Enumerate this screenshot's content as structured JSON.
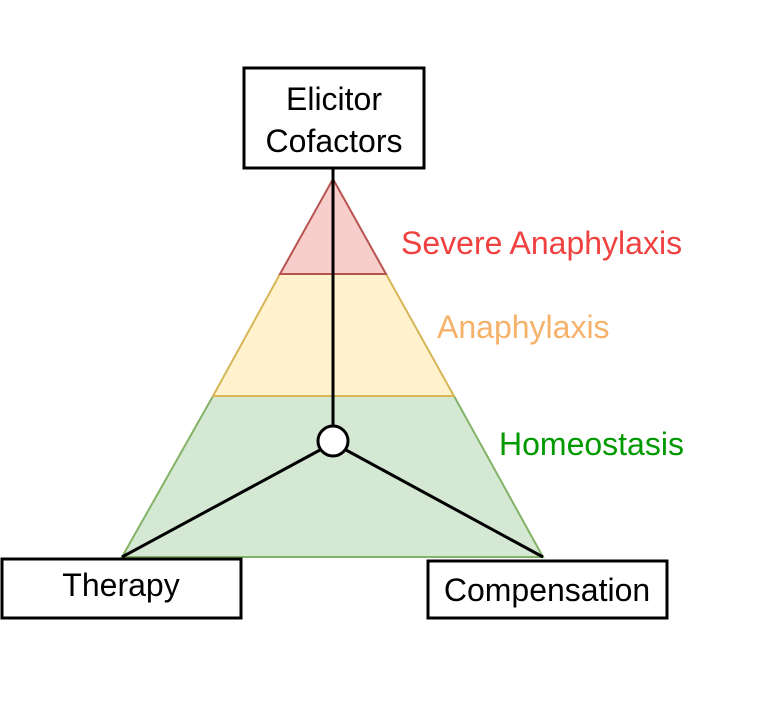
{
  "diagram": {
    "top_box": {
      "line1": "Elicitor",
      "line2": "Cofactors"
    },
    "left_box": {
      "label": "Therapy"
    },
    "right_box": {
      "label": "Compensation"
    },
    "zones": {
      "severe": {
        "label": "Severe Anaphylaxis",
        "color": "#f04141",
        "fill": "#f8cecc",
        "stroke": "#b85450"
      },
      "anaphylaxis": {
        "label": "Anaphylaxis",
        "color": "#f6b26b",
        "fill": "#fff2cc",
        "stroke": "#d6b656"
      },
      "homeostasis": {
        "label": "Homeostasis",
        "color": "#009900",
        "fill": "#d5e8d4",
        "stroke": "#82b366"
      }
    }
  }
}
